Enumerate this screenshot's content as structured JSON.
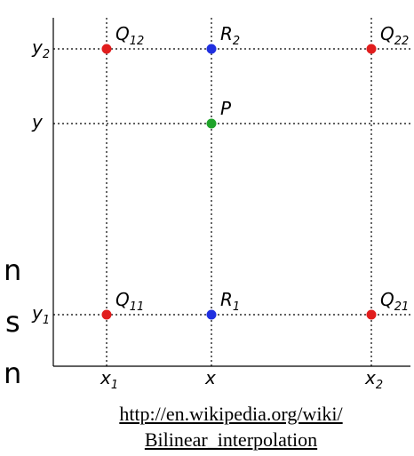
{
  "colors": {
    "corner": "#e11d1d",
    "interp": "#1f2fe0",
    "target": "#1fa32a"
  },
  "points": [
    {
      "id": "Q12",
      "base": "Q",
      "sub": "12",
      "color_key": "corner",
      "gx": "x1",
      "gy": "y2"
    },
    {
      "id": "R2",
      "base": "R",
      "sub": "2",
      "color_key": "interp",
      "gx": "x",
      "gy": "y2"
    },
    {
      "id": "Q22",
      "base": "Q",
      "sub": "22",
      "color_key": "corner",
      "gx": "x2",
      "gy": "y2"
    },
    {
      "id": "P",
      "base": "P",
      "sub": "",
      "color_key": "target",
      "gx": "x",
      "gy": "y"
    },
    {
      "id": "Q11",
      "base": "Q",
      "sub": "11",
      "color_key": "corner",
      "gx": "x1",
      "gy": "y1"
    },
    {
      "id": "R1",
      "base": "R",
      "sub": "1",
      "color_key": "interp",
      "gx": "x",
      "gy": "y1"
    },
    {
      "id": "Q21",
      "base": "Q",
      "sub": "21",
      "color_key": "corner",
      "gx": "x2",
      "gy": "y1"
    }
  ],
  "x_ticks": [
    {
      "id": "x1",
      "base": "x",
      "sub": "1"
    },
    {
      "id": "x",
      "base": "x",
      "sub": ""
    },
    {
      "id": "x2",
      "base": "x",
      "sub": "2"
    }
  ],
  "y_ticks": [
    {
      "id": "y2",
      "base": "y",
      "sub": "2"
    },
    {
      "id": "y",
      "base": "y",
      "sub": ""
    },
    {
      "id": "y1",
      "base": "y",
      "sub": "1"
    }
  ],
  "left_fragments": [
    "n",
    "s",
    "n"
  ],
  "caption": {
    "line1": "http://en.wikipedia.org/wiki/",
    "line2": "Bilinear_interpolation"
  }
}
